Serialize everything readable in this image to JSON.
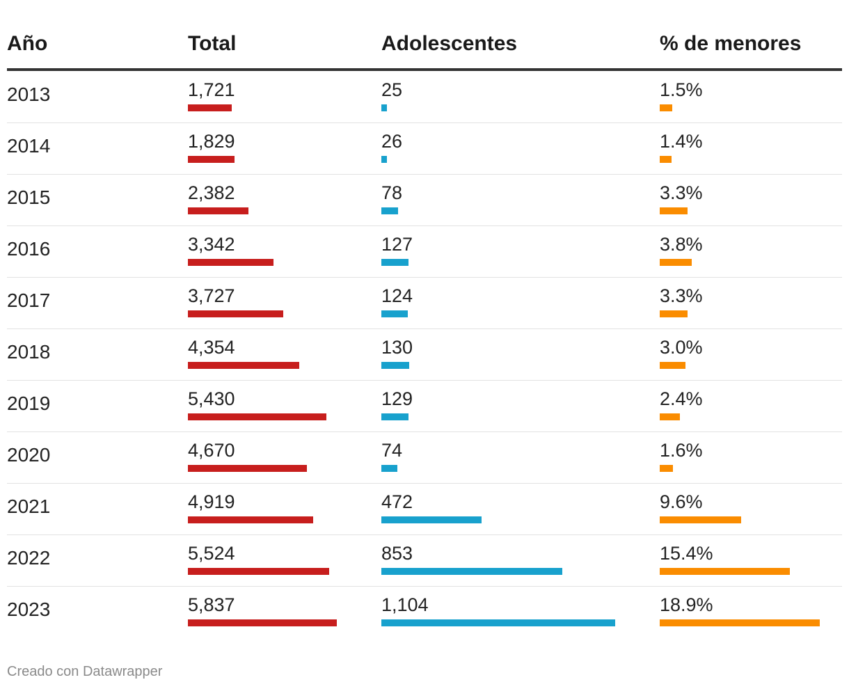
{
  "chart_data": {
    "type": "table",
    "columns": [
      "Año",
      "Total",
      "Adolescentes",
      "% de menores"
    ],
    "rows": [
      {
        "year": "2013",
        "total": 1721,
        "total_label": "1,721",
        "ado": 25,
        "ado_label": "25",
        "pct": 1.5,
        "pct_label": "1.5%"
      },
      {
        "year": "2014",
        "total": 1829,
        "total_label": "1,829",
        "ado": 26,
        "ado_label": "26",
        "pct": 1.4,
        "pct_label": "1.4%"
      },
      {
        "year": "2015",
        "total": 2382,
        "total_label": "2,382",
        "ado": 78,
        "ado_label": "78",
        "pct": 3.3,
        "pct_label": "3.3%"
      },
      {
        "year": "2016",
        "total": 3342,
        "total_label": "3,342",
        "ado": 127,
        "ado_label": "127",
        "pct": 3.8,
        "pct_label": "3.8%"
      },
      {
        "year": "2017",
        "total": 3727,
        "total_label": "3,727",
        "ado": 124,
        "ado_label": "124",
        "pct": 3.3,
        "pct_label": "3.3%"
      },
      {
        "year": "2018",
        "total": 4354,
        "total_label": "4,354",
        "ado": 130,
        "ado_label": "130",
        "pct": 3.0,
        "pct_label": "3.0%"
      },
      {
        "year": "2019",
        "total": 5430,
        "total_label": "5,430",
        "ado": 129,
        "ado_label": "129",
        "pct": 2.4,
        "pct_label": "2.4%"
      },
      {
        "year": "2020",
        "total": 4670,
        "total_label": "4,670",
        "ado": 74,
        "ado_label": "74",
        "pct": 1.6,
        "pct_label": "1.6%"
      },
      {
        "year": "2021",
        "total": 4919,
        "total_label": "4,919",
        "ado": 472,
        "ado_label": "472",
        "pct": 9.6,
        "pct_label": "9.6%"
      },
      {
        "year": "2022",
        "total": 5524,
        "total_label": "5,524",
        "ado": 853,
        "ado_label": "853",
        "pct": 15.4,
        "pct_label": "15.4%"
      },
      {
        "year": "2023",
        "total": 5837,
        "total_label": "5,837",
        "ado": 1104,
        "ado_label": "1,104",
        "pct": 18.9,
        "pct_label": "18.9%"
      }
    ],
    "colors": {
      "total": "#c71e1d",
      "ado": "#18a1cd",
      "pct": "#fa8c00"
    }
  },
  "footer": {
    "credit": "Creado con Datawrapper"
  }
}
